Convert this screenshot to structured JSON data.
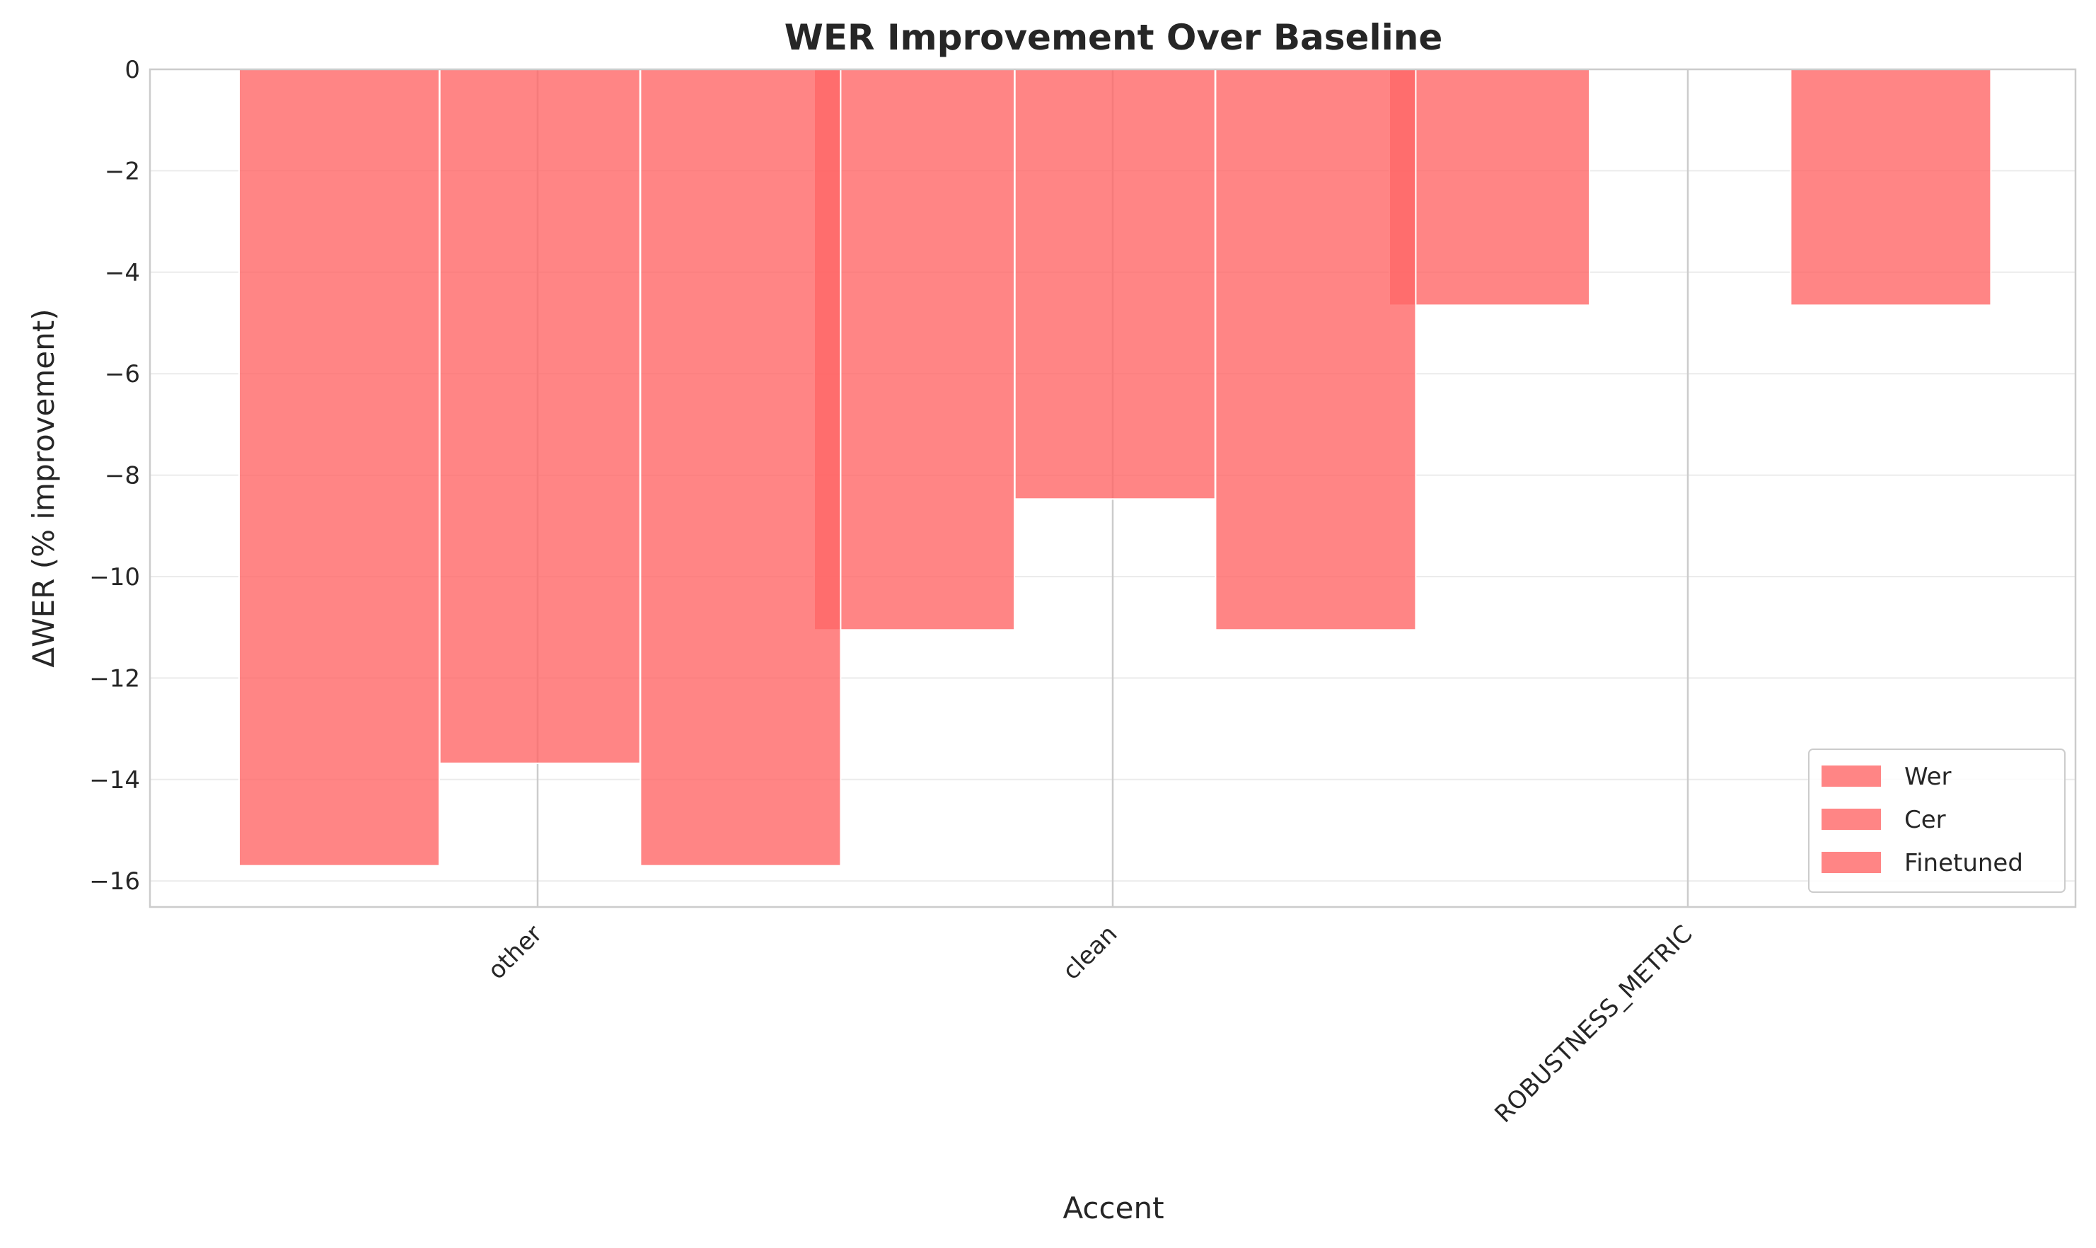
{
  "chart_data": {
    "type": "bar",
    "title": "WER Improvement Over Baseline",
    "xlabel": "Accent",
    "ylabel": "ΔWER (% improvement)",
    "categories": [
      "other",
      "clean",
      "ROBUSTNESS_METRIC"
    ],
    "ylim": [
      -16.5,
      0
    ],
    "yticks": [
      0,
      -2,
      -4,
      -6,
      -8,
      -10,
      -12,
      -14,
      -16
    ],
    "ytick_labels": [
      "0",
      "−2",
      "−4",
      "−6",
      "−8",
      "−10",
      "−12",
      "−14",
      "−16"
    ],
    "grid": true,
    "legend_position": "lower-right",
    "series": [
      {
        "name": "Wer",
        "color": "#ff6666",
        "values": [
          -15.7,
          -11.05,
          -4.65
        ]
      },
      {
        "name": "Cer",
        "color": "#ff6666",
        "values": [
          -13.68,
          -8.47,
          null
        ]
      },
      {
        "name": "Finetuned",
        "color": "#ff6666",
        "values": [
          -15.7,
          -11.05,
          -4.65
        ]
      }
    ]
  }
}
